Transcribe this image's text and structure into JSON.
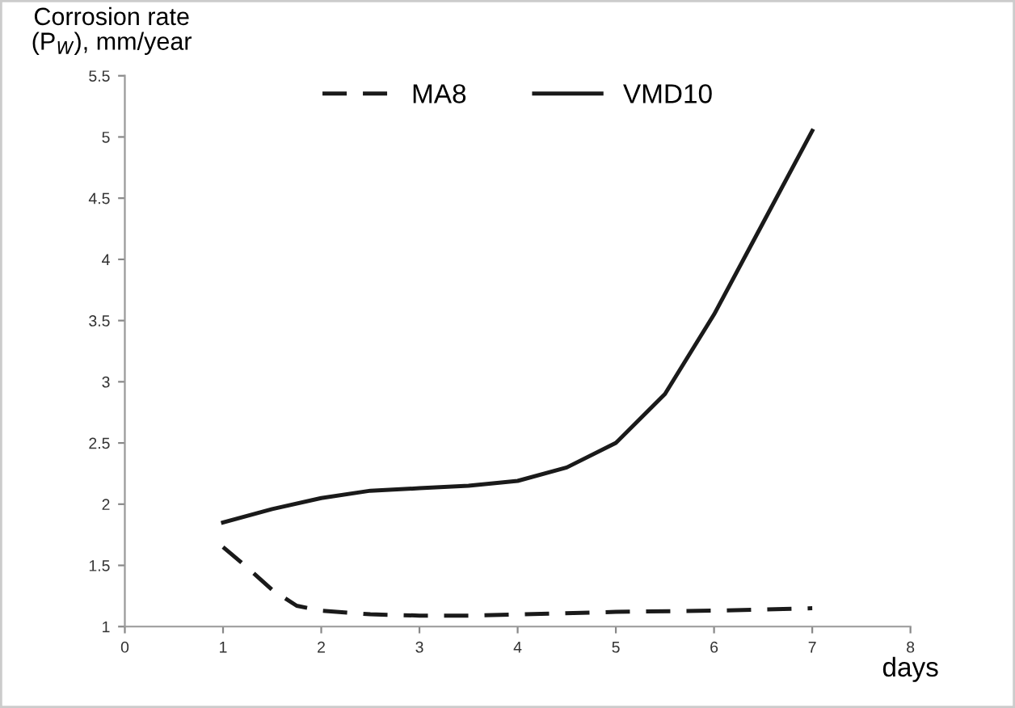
{
  "chart_data": {
    "type": "line",
    "ylabel": "Corrosion rate\n(P$_{W}$), mm/year",
    "xlabel": "days",
    "xlim": [
      0,
      8
    ],
    "xticks": [
      0,
      1,
      2,
      3,
      4,
      5,
      6,
      7,
      8
    ],
    "ylim": [
      1,
      5.5
    ],
    "yticks": [
      1,
      1.5,
      2,
      2.5,
      3,
      3.5,
      4,
      4.5,
      5,
      5.5
    ],
    "grid": false,
    "legend": "top",
    "marker": "none",
    "series": [
      {
        "name": "MA8",
        "color": "#1a1a1a",
        "line_style": "dashed",
        "x": [
          1,
          1.25,
          1.5,
          1.75,
          2,
          2.5,
          3,
          3.5,
          4,
          5,
          6,
          7
        ],
        "values": [
          1.65,
          1.48,
          1.3,
          1.17,
          1.13,
          1.1,
          1.09,
          1.09,
          1.1,
          1.12,
          1.13,
          1.15
        ]
      },
      {
        "name": "VMD10",
        "color": "#1a1a1a",
        "line_style": "solid",
        "x": [
          1,
          1.5,
          2,
          2.5,
          3,
          3.5,
          4,
          4.5,
          5,
          5.5,
          6,
          6.5,
          7
        ],
        "values": [
          1.85,
          1.96,
          2.05,
          2.11,
          2.13,
          2.15,
          2.19,
          2.3,
          2.5,
          2.9,
          3.55,
          4.3,
          5.05
        ]
      }
    ]
  }
}
